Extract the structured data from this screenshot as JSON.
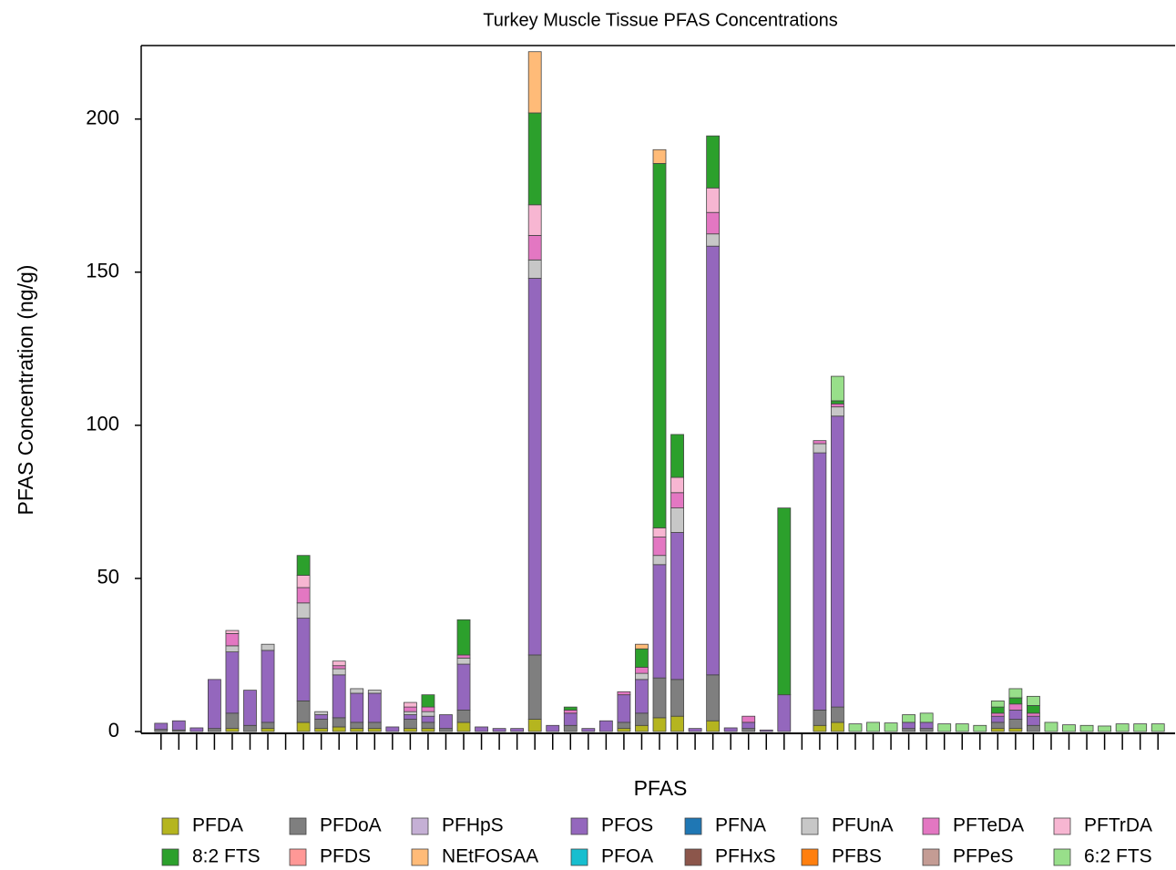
{
  "chart_data": {
    "type": "stacked_bar",
    "title": "Turkey Muscle Tissue PFAS Concentrations",
    "xlabel": "PFAS",
    "ylabel": "PFAS Concentration (ng/g)",
    "categories": [
      null,
      null,
      null,
      null,
      null,
      null,
      null,
      null,
      null,
      null,
      null,
      null,
      null,
      null,
      null,
      null,
      null,
      null,
      null,
      null,
      null,
      null,
      null,
      null,
      null,
      null,
      null,
      null,
      null,
      null,
      null,
      null,
      null,
      null,
      null,
      null,
      null,
      null,
      null,
      null,
      null,
      null,
      null,
      null,
      null,
      null,
      null,
      null,
      null,
      null,
      null,
      null,
      null,
      null,
      null,
      null,
      null
    ],
    "ylim": [
      0,
      224
    ],
    "yticks": [
      0,
      50,
      100,
      150,
      200
    ],
    "series": [
      {
        "name": "PFDA",
        "color": "#b5b51f",
        "values": [
          0,
          0,
          0,
          0,
          1,
          0,
          1,
          0,
          3,
          1,
          1.5,
          1,
          1,
          0,
          1,
          1,
          0,
          3,
          0,
          0,
          0,
          4,
          0,
          0,
          0,
          0,
          1,
          2,
          4.5,
          5,
          0,
          3.5,
          0,
          0,
          0,
          0,
          0,
          2,
          3,
          0,
          0,
          0,
          0,
          0,
          0,
          0,
          0,
          1,
          1,
          0,
          0,
          0,
          0,
          0,
          0,
          0,
          0
        ]
      },
      {
        "name": "PFDoA",
        "color": "#7f7f7f",
        "values": [
          0.7,
          0.5,
          0,
          1,
          5,
          2,
          2,
          0,
          7,
          3,
          3,
          2,
          2,
          0,
          3,
          2,
          1,
          4,
          0,
          0,
          0,
          21,
          0,
          2,
          0,
          0,
          2,
          4,
          13,
          12,
          0,
          15,
          0,
          1,
          0,
          0,
          0,
          5,
          5,
          0,
          0,
          0,
          1,
          1,
          0,
          0,
          0,
          2,
          3,
          2,
          0,
          0,
          0,
          0,
          0,
          0,
          0
        ]
      },
      {
        "name": "PFHpS",
        "color": "#c5b0d5",
        "values": [
          0,
          0,
          0,
          0,
          0,
          0,
          0,
          0,
          0,
          0,
          0,
          0,
          0,
          0,
          0,
          0,
          0,
          0,
          0,
          0,
          0,
          0,
          0,
          0,
          0,
          0,
          0,
          0,
          0,
          0,
          0,
          0,
          0,
          0,
          0,
          0,
          0,
          0,
          0,
          0,
          0,
          0,
          0,
          0,
          0,
          0,
          0,
          0,
          0,
          0,
          0,
          0,
          0,
          0,
          0,
          0,
          0
        ]
      },
      {
        "name": "PFOS",
        "color": "#9467bd",
        "values": [
          2,
          3,
          1.2,
          16,
          20,
          11.5,
          23.5,
          0,
          27,
          1.5,
          14,
          9.5,
          9.5,
          1.5,
          1.5,
          2,
          4.5,
          15,
          1.5,
          1,
          1,
          123,
          2,
          4,
          1,
          3.5,
          9,
          11,
          37,
          48,
          1,
          140,
          1.2,
          2,
          0.5,
          12,
          0,
          84,
          95,
          0,
          0,
          0,
          2,
          2,
          0,
          0,
          0,
          2,
          3,
          3,
          0,
          0,
          0,
          0,
          0,
          0,
          0
        ]
      },
      {
        "name": "PFNA",
        "color": "#1f77b4",
        "values": [
          0,
          0,
          0,
          0,
          0,
          0,
          0,
          0,
          0,
          0,
          0,
          0,
          0,
          0,
          0,
          0,
          0,
          0,
          0,
          0,
          0,
          0,
          0,
          0,
          0,
          0,
          0,
          0,
          0,
          0,
          0,
          0,
          0,
          0,
          0,
          0,
          0,
          0,
          0,
          0,
          0,
          0,
          0,
          0,
          0,
          0,
          0,
          0,
          0,
          0,
          0,
          0,
          0,
          0,
          0,
          0,
          0
        ]
      },
      {
        "name": "PFUnA",
        "color": "#c7c7c7",
        "values": [
          0,
          0,
          0,
          0,
          2,
          0,
          2,
          0,
          5,
          1,
          2,
          1.5,
          1,
          0,
          1,
          1.5,
          0,
          2,
          0,
          0,
          0,
          6,
          0,
          0,
          0,
          0,
          0,
          2,
          3,
          8,
          0,
          4,
          0,
          0,
          0,
          0,
          0,
          3,
          3,
          0,
          0,
          0,
          0,
          0,
          0,
          0,
          0,
          0,
          0,
          0,
          0,
          0,
          0,
          0,
          0,
          0,
          0
        ]
      },
      {
        "name": "PFTeDA",
        "color": "#e377c2",
        "values": [
          0,
          0,
          0,
          0,
          4,
          0,
          0,
          0,
          5,
          0,
          1,
          0,
          0,
          0,
          1.5,
          1.5,
          0,
          1,
          0,
          0,
          0,
          8,
          0,
          1,
          0,
          0,
          1,
          2,
          6,
          5,
          0,
          7,
          0,
          2,
          0,
          0,
          0,
          1,
          1,
          0,
          0,
          0,
          0,
          0,
          0,
          0,
          0,
          1,
          2,
          1,
          0,
          0,
          0,
          0,
          0,
          0,
          0
        ]
      },
      {
        "name": "PFTrDA",
        "color": "#f7b6d2",
        "values": [
          0,
          0,
          0,
          0,
          1,
          0,
          0,
          0,
          4,
          0,
          1.5,
          0,
          0,
          0,
          1.5,
          0,
          0,
          0,
          0,
          0,
          0,
          10,
          0,
          0,
          0,
          0,
          0,
          0,
          3,
          5,
          0,
          8,
          0,
          0,
          0,
          0,
          0,
          0,
          0,
          0,
          0,
          0,
          0,
          0,
          0,
          0,
          0,
          0,
          0,
          0,
          0,
          0,
          0,
          0,
          0,
          0,
          0
        ]
      },
      {
        "name": "8:2 FTS",
        "color": "#2ca02c",
        "values": [
          0,
          0,
          0,
          0,
          0,
          0,
          0,
          0,
          6.5,
          0,
          0,
          0,
          0,
          0,
          0,
          4,
          0,
          11.5,
          0,
          0,
          0,
          30,
          0,
          1,
          0,
          0,
          0,
          6,
          119,
          14,
          0,
          17,
          0,
          0,
          0,
          61,
          0,
          0,
          1,
          0,
          0,
          0,
          0,
          0,
          0,
          0,
          0,
          2,
          2,
          2.5,
          0,
          0,
          0,
          0,
          0,
          0,
          0
        ]
      },
      {
        "name": "PFDS",
        "color": "#ff9896",
        "values": [
          0,
          0,
          0,
          0,
          0,
          0,
          0,
          0,
          0,
          0,
          0,
          0,
          0,
          0,
          0,
          0,
          0,
          0,
          0,
          0,
          0,
          0,
          0,
          0,
          0,
          0,
          0,
          0,
          0,
          0,
          0,
          0,
          0,
          0,
          0,
          0,
          0,
          0,
          0,
          0,
          0,
          0,
          0,
          0,
          0,
          0,
          0,
          0,
          0,
          0,
          0,
          0,
          0,
          0,
          0,
          0,
          0
        ]
      },
      {
        "name": "NEtFOSAA",
        "color": "#ffbb78",
        "values": [
          0,
          0,
          0,
          0,
          0,
          0,
          0,
          0,
          0,
          0,
          0,
          0,
          0,
          0,
          0,
          0,
          0,
          0,
          0,
          0,
          0,
          20,
          0,
          0,
          0,
          0,
          0,
          1.5,
          4.5,
          0,
          0,
          0,
          0,
          0,
          0,
          0,
          0,
          0,
          0,
          0,
          0,
          0,
          0,
          0,
          0,
          0,
          0,
          0,
          0,
          0,
          0,
          0,
          0,
          0,
          0,
          0,
          0
        ]
      },
      {
        "name": "PFOA",
        "color": "#17becf",
        "values": [
          0,
          0,
          0,
          0,
          0,
          0,
          0,
          0,
          0,
          0,
          0,
          0,
          0,
          0,
          0,
          0,
          0,
          0,
          0,
          0,
          0,
          0,
          0,
          0,
          0,
          0,
          0,
          0,
          0,
          0,
          0,
          0,
          0,
          0,
          0,
          0,
          0,
          0,
          0,
          0,
          0,
          0,
          0,
          0,
          0,
          0,
          0,
          0,
          0,
          0,
          0,
          0,
          0,
          0,
          0,
          0,
          0
        ]
      },
      {
        "name": "PFHxS",
        "color": "#8c564b",
        "values": [
          0,
          0,
          0,
          0,
          0,
          0,
          0,
          0,
          0,
          0,
          0,
          0,
          0,
          0,
          0,
          0,
          0,
          0,
          0,
          0,
          0,
          0,
          0,
          0,
          0,
          0,
          0,
          0,
          0,
          0,
          0,
          0,
          0,
          0,
          0,
          0,
          0,
          0,
          0,
          0,
          0,
          0,
          0,
          0,
          0,
          0,
          0,
          0,
          0,
          0,
          0,
          0,
          0,
          0,
          0,
          0,
          0
        ]
      },
      {
        "name": "PFBS",
        "color": "#ff7f0e",
        "values": [
          0,
          0,
          0,
          0,
          0,
          0,
          0,
          0,
          0,
          0,
          0,
          0,
          0,
          0,
          0,
          0,
          0,
          0,
          0,
          0,
          0,
          0,
          0,
          0,
          0,
          0,
          0,
          0,
          0,
          0,
          0,
          0,
          0,
          0,
          0,
          0,
          0,
          0,
          0,
          0,
          0,
          0,
          0,
          0,
          0,
          0,
          0,
          0,
          0,
          0,
          0,
          0,
          0,
          0,
          0,
          0,
          0
        ]
      },
      {
        "name": "PFPeS",
        "color": "#c49c94",
        "values": [
          0,
          0,
          0,
          0,
          0,
          0,
          0,
          0,
          0,
          0,
          0,
          0,
          0,
          0,
          0,
          0,
          0,
          0,
          0,
          0,
          0,
          0,
          0,
          0,
          0,
          0,
          0,
          0,
          0,
          0,
          0,
          0,
          0,
          0,
          0,
          0,
          0,
          0,
          0,
          0,
          0,
          0,
          0,
          0,
          0,
          0,
          0,
          0,
          0,
          0,
          0,
          0,
          0,
          0,
          0,
          0,
          0
        ]
      },
      {
        "name": "6:2 FTS",
        "color": "#98df8a",
        "values": [
          0,
          0,
          0,
          0,
          0,
          0,
          0,
          0,
          0,
          0,
          0,
          0,
          0,
          0,
          0,
          0,
          0,
          0,
          0,
          0,
          0,
          0,
          0,
          0,
          0,
          0,
          0,
          0,
          0,
          0,
          0,
          0,
          0,
          0,
          0,
          0,
          0,
          0,
          8,
          2.5,
          3,
          2.8,
          2.5,
          3,
          2.5,
          2.5,
          2,
          2,
          3,
          3,
          3,
          2.2,
          2,
          1.8,
          2.5,
          2.5,
          2.5
        ]
      }
    ]
  }
}
